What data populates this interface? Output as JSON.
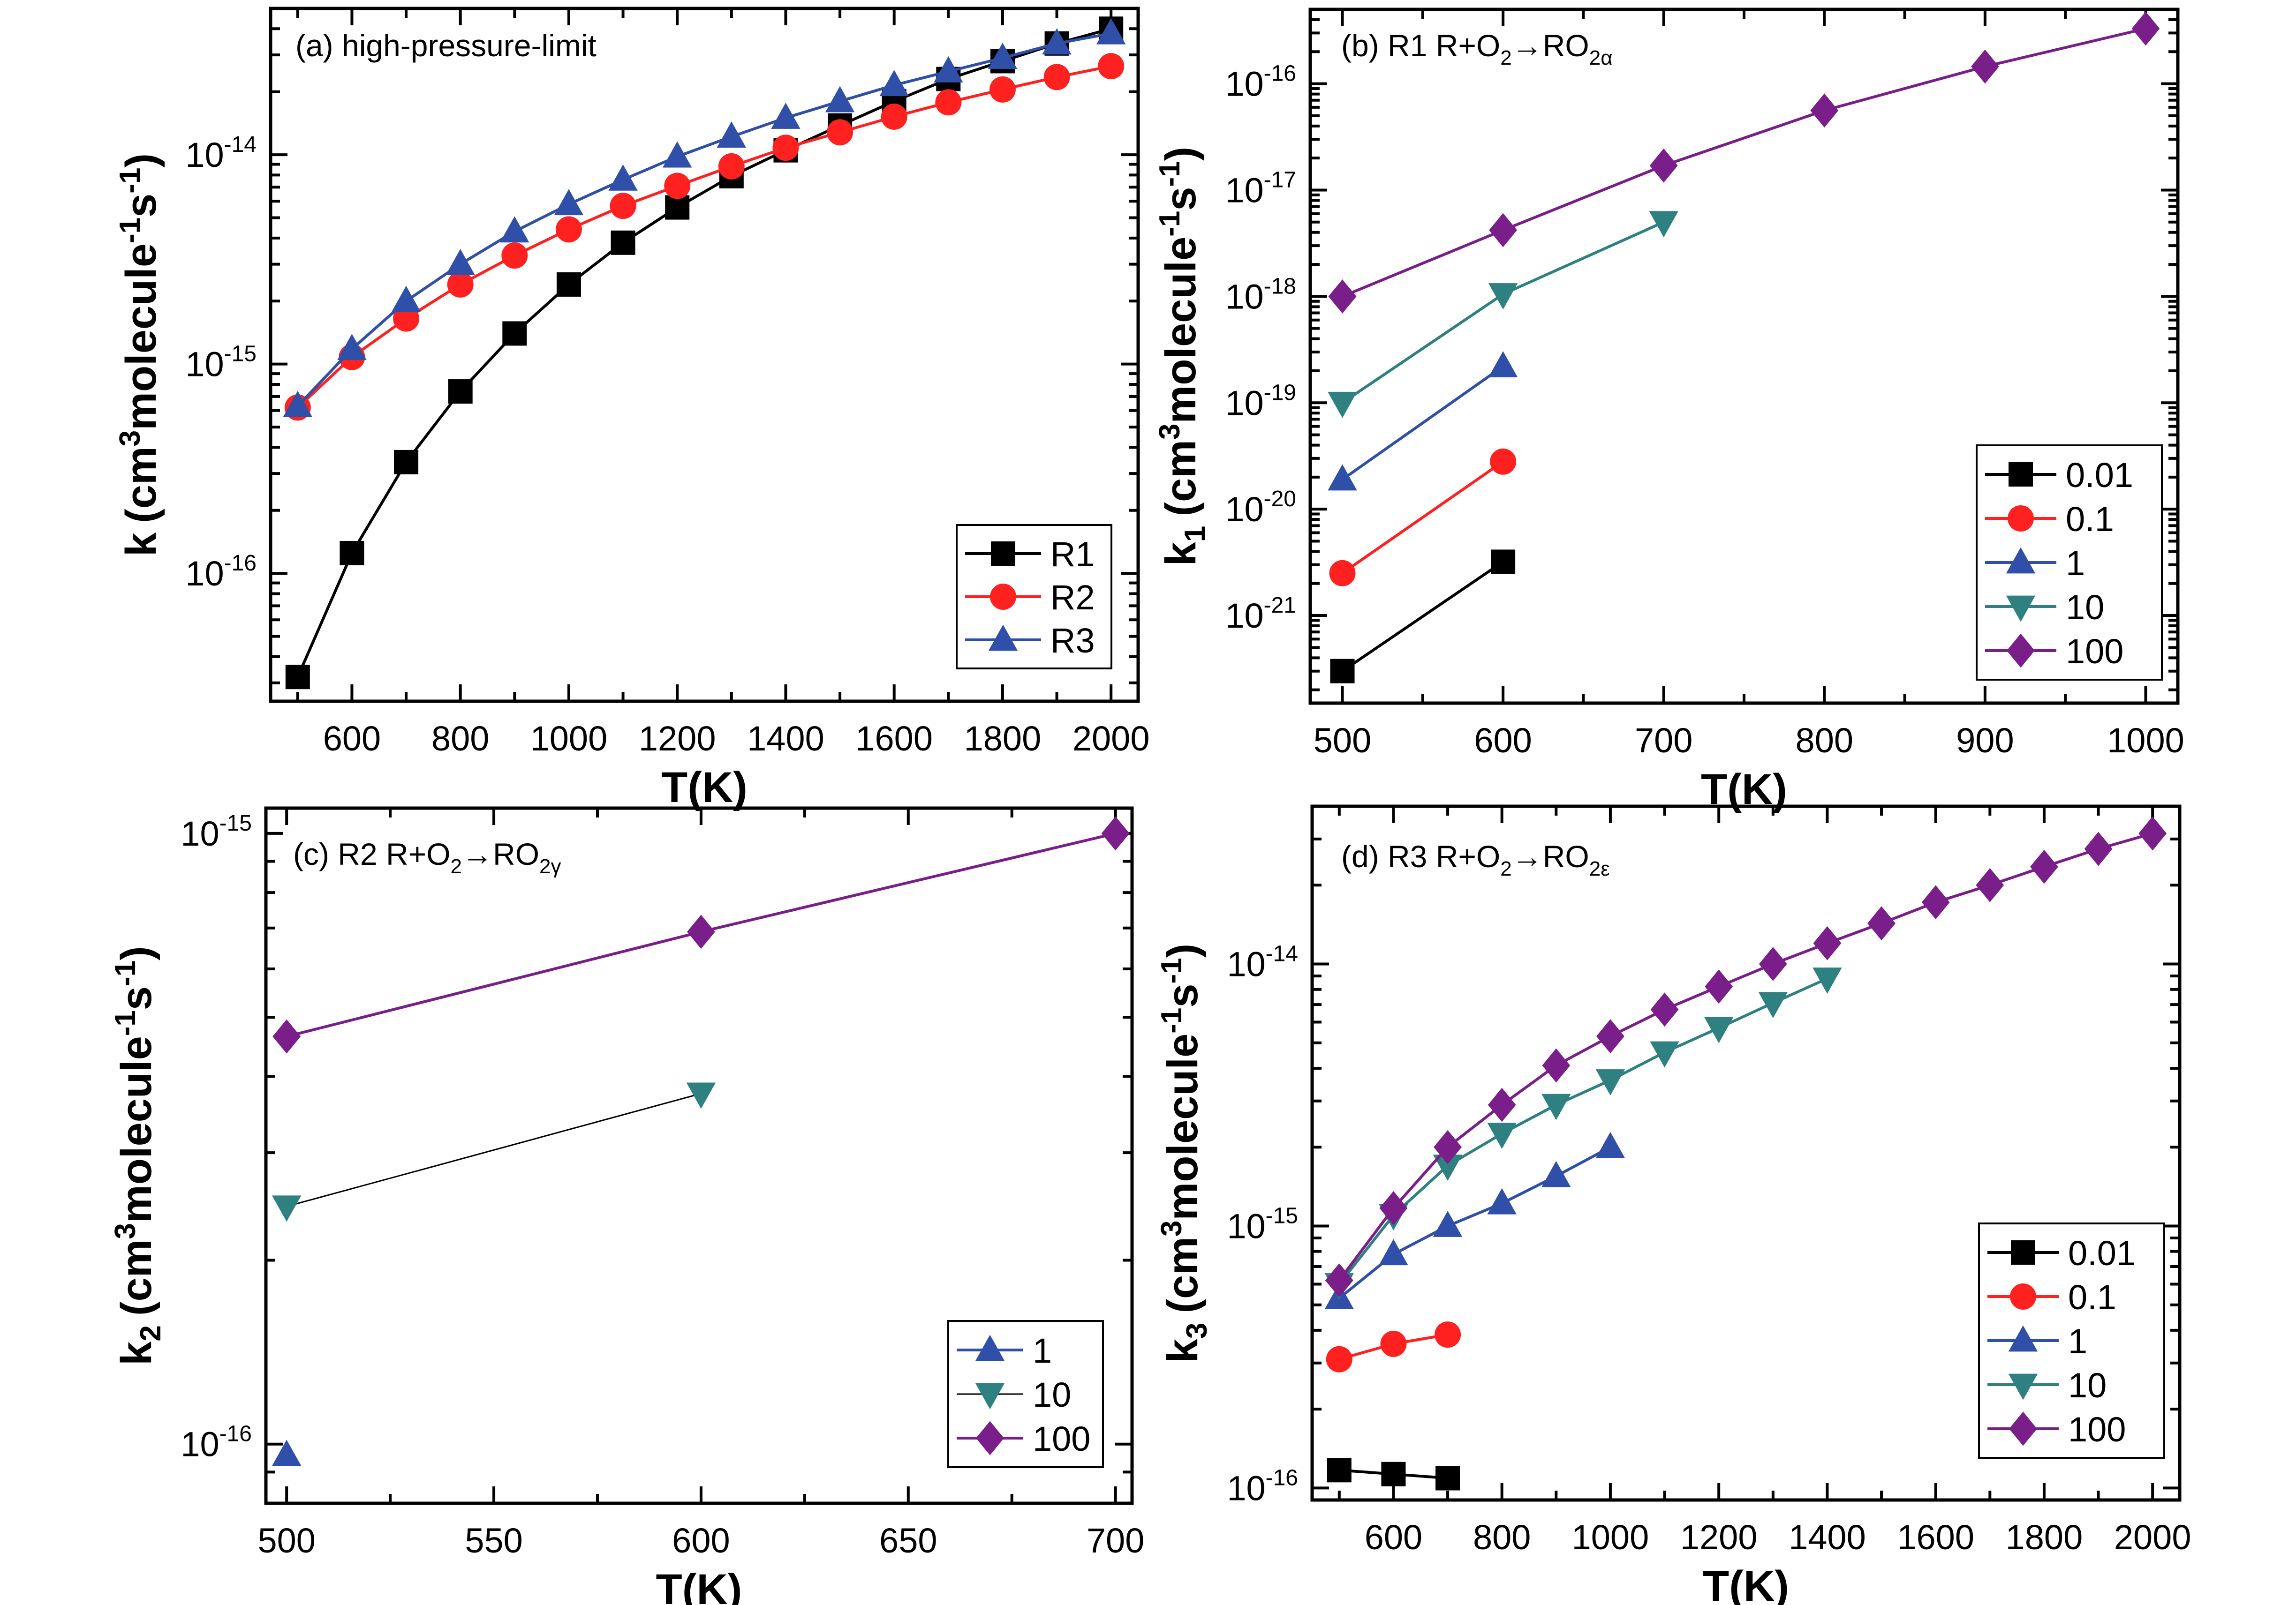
{
  "chart_data": [
    {
      "id": "a",
      "type": "line",
      "title": "(a) high-pressure-limit",
      "title_parts": {
        "main": "(a) high-pressure-limit"
      },
      "xlabel": "T(K)",
      "ylabel": {
        "base": "k",
        "sub": "",
        "unit_prefix": "(cm",
        "unit_sup1": "3",
        "unit_mid": "molecule",
        "unit_sup2": "-1",
        "unit_s": "s",
        "unit_sup3": "-1",
        "unit_close": ")"
      },
      "xscale": "linear",
      "yscale": "log",
      "xlim": [
        450,
        2050
      ],
      "ylim": [
        2.45e-17,
        5e-14
      ],
      "xticks": [
        600,
        800,
        1000,
        1200,
        1400,
        1600,
        1800,
        2000
      ],
      "xtick_labels": [
        "600",
        "800",
        "1000",
        "1200",
        "1400",
        "1600",
        "1800",
        "2000"
      ],
      "xminor_step": 100,
      "yticks_exp": [
        -16,
        -15,
        -14
      ],
      "legend_position": "bottom-right",
      "grid": false,
      "series": [
        {
          "name": "R1",
          "color": "#000000",
          "marker": "square",
          "x": [
            500,
            600,
            700,
            800,
            900,
            1000,
            1100,
            1200,
            1300,
            1400,
            1500,
            1600,
            1700,
            1800,
            1900,
            2000
          ],
          "y": [
            3.2e-17,
            1.25e-16,
            3.4e-16,
            7.4e-16,
            1.4e-15,
            2.4e-15,
            3.8e-15,
            5.6e-15,
            7.9e-15,
            1.05e-14,
            1.38e-14,
            1.8e-14,
            2.3e-14,
            2.8e-14,
            3.4e-14,
            4e-14
          ]
        },
        {
          "name": "R2",
          "color": "#ff2020",
          "marker": "circle",
          "x": [
            500,
            600,
            700,
            800,
            900,
            1000,
            1100,
            1200,
            1300,
            1400,
            1500,
            1600,
            1700,
            1800,
            1900,
            2000
          ],
          "y": [
            6.2e-16,
            1.08e-15,
            1.65e-15,
            2.4e-15,
            3.3e-15,
            4.4e-15,
            5.7e-15,
            7.1e-15,
            8.8e-15,
            1.08e-14,
            1.28e-14,
            1.52e-14,
            1.78e-14,
            2.05e-14,
            2.35e-14,
            2.65e-14
          ]
        },
        {
          "name": "R3",
          "color": "#2f4fa8",
          "marker": "triangle-up",
          "x": [
            500,
            600,
            700,
            800,
            900,
            1000,
            1100,
            1200,
            1300,
            1400,
            1500,
            1600,
            1700,
            1800,
            1900,
            2000
          ],
          "y": [
            6.3e-16,
            1.18e-15,
            2e-15,
            3e-15,
            4.3e-15,
            5.8e-15,
            7.6e-15,
            9.8e-15,
            1.22e-14,
            1.5e-14,
            1.8e-14,
            2.15e-14,
            2.5e-14,
            2.9e-14,
            3.4e-14,
            3.8e-14
          ]
        }
      ]
    },
    {
      "id": "b",
      "type": "line",
      "title": "(b) R1 R+O2→RO2α",
      "title_parts": {
        "main": "(b)  R1  R+O",
        "sub1": "2",
        "arrow": "→RO",
        "sub2": "2α"
      },
      "xlabel": "T(K)",
      "ylabel": {
        "base": "k",
        "sub": "1",
        "unit_prefix": "(cm",
        "unit_sup1": "3",
        "unit_mid": "molecule",
        "unit_sup2": "-1",
        "unit_s": "s",
        "unit_sup3": "-1",
        "unit_close": ")"
      },
      "xscale": "linear",
      "yscale": "log",
      "xlim": [
        480,
        1020
      ],
      "ylim": [
        1.5e-22,
        5e-16
      ],
      "xticks": [
        500,
        600,
        700,
        800,
        900,
        1000
      ],
      "xtick_labels": [
        "500",
        "600",
        "700",
        "800",
        "900",
        "1000"
      ],
      "xminor_step": 50,
      "yticks_exp": [
        -21,
        -20,
        -19,
        -18,
        -17,
        -16
      ],
      "legend_position": "bottom-right",
      "grid": false,
      "series": [
        {
          "name": "0.01",
          "color": "#000000",
          "marker": "square",
          "x": [
            500,
            600
          ],
          "y": [
            3e-22,
            3.2e-21
          ]
        },
        {
          "name": "0.1",
          "color": "#ff2020",
          "marker": "circle",
          "x": [
            500,
            600
          ],
          "y": [
            2.5e-21,
            2.8e-20
          ]
        },
        {
          "name": "1",
          "color": "#2f4fa8",
          "marker": "triangle-up",
          "x": [
            500,
            600
          ],
          "y": [
            1.9e-20,
            2.2e-19
          ]
        },
        {
          "name": "10",
          "color": "#2f8080",
          "marker": "triangle-down",
          "x": [
            500,
            600,
            700
          ],
          "y": [
            1e-19,
            1.05e-18,
            5e-18
          ]
        },
        {
          "name": "100",
          "color": "#7a1f8a",
          "marker": "diamond",
          "x": [
            500,
            600,
            700,
            800,
            900,
            1000
          ],
          "y": [
            1e-18,
            4.2e-18,
            1.7e-17,
            5.6e-17,
            1.45e-16,
            3.3e-16
          ]
        }
      ]
    },
    {
      "id": "c",
      "type": "line",
      "title": "(c) R2 R+O2→RO2γ",
      "title_parts": {
        "main": "(c) R2  R+O",
        "sub1": "2",
        "arrow": "→RO",
        "sub2": "2γ"
      },
      "xlabel": "T(K)",
      "ylabel": {
        "base": "k",
        "sub": "2",
        "unit_prefix": "(cm",
        "unit_sup1": "3",
        "unit_mid": "molecule",
        "unit_sup2": "-1",
        "unit_s": "s",
        "unit_sup3": "-1",
        "unit_close": ")"
      },
      "xscale": "linear",
      "yscale": "log",
      "xlim": [
        495,
        704
      ],
      "ylim": [
        8e-17,
        1.1e-15
      ],
      "xticks": [
        500,
        550,
        600,
        650,
        700
      ],
      "xtick_labels": [
        "500",
        "550",
        "600",
        "650",
        "700"
      ],
      "xminor_step": 25,
      "yticks_exp": [
        -16,
        -15
      ],
      "legend_position": "bottom-right",
      "grid": false,
      "series": [
        {
          "name": "1",
          "color": "#2f4fa8",
          "marker": "triangle-up",
          "x": [
            500
          ],
          "y": [
            9.6e-17
          ]
        },
        {
          "name": "10",
          "color": "#000000",
          "marker_color": "#2f8080",
          "marker": "triangle-down",
          "thin": true,
          "x": [
            500,
            600
          ],
          "y": [
            2.45e-16,
            3.75e-16
          ]
        },
        {
          "name": "100",
          "color": "#7a1f8a",
          "marker": "diamond",
          "x": [
            500,
            600,
            700
          ],
          "y": [
            4.65e-16,
            6.9e-16,
            1e-15
          ]
        }
      ]
    },
    {
      "id": "d",
      "type": "line",
      "title": "(d) R3 R+O2→RO2ε",
      "title_parts": {
        "main": "(d) R3  R+O",
        "sub1": "2",
        "arrow": "→RO",
        "sub2": "2ε"
      },
      "xlabel": "T(K)",
      "ylabel": {
        "base": "k",
        "sub": "3",
        "unit_prefix": "(cm",
        "unit_sup1": "3",
        "unit_mid": "molecule",
        "unit_sup2": "-1",
        "unit_s": "s",
        "unit_sup3": "-1",
        "unit_close": ")"
      },
      "xscale": "linear",
      "yscale": "log",
      "xlim": [
        450,
        2050
      ],
      "ylim": [
        9e-17,
        4e-14
      ],
      "xticks": [
        600,
        800,
        1000,
        1200,
        1400,
        1600,
        1800,
        2000
      ],
      "xtick_labels": [
        "600",
        "800",
        "1000",
        "1200",
        "1400",
        "1600",
        "1800",
        "2000"
      ],
      "xminor_step": 100,
      "yticks_exp": [
        -16,
        -15,
        -14
      ],
      "legend_position": "bottom-right",
      "grid": false,
      "series": [
        {
          "name": "0.01",
          "color": "#000000",
          "marker": "square",
          "x": [
            500,
            600,
            700
          ],
          "y": [
            1.17e-16,
            1.13e-16,
            1.09e-16
          ]
        },
        {
          "name": "0.1",
          "color": "#ff2020",
          "marker": "circle",
          "x": [
            500,
            600,
            700
          ],
          "y": [
            3.1e-16,
            3.55e-16,
            3.85e-16
          ]
        },
        {
          "name": "1",
          "color": "#2f4fa8",
          "marker": "triangle-up",
          "x": [
            500,
            600,
            700,
            800,
            900,
            1000
          ],
          "y": [
            5.3e-16,
            7.8e-16,
            1e-15,
            1.22e-15,
            1.55e-15,
            2e-15
          ]
        },
        {
          "name": "10",
          "color": "#2f8080",
          "marker": "triangle-down",
          "x": [
            500,
            600,
            700,
            800,
            900,
            1000,
            1100,
            1200,
            1300,
            1400
          ],
          "y": [
            6e-16,
            1.1e-15,
            1.7e-15,
            2.25e-15,
            2.9e-15,
            3.6e-15,
            4.6e-15,
            5.7e-15,
            7.1e-15,
            8.8e-15
          ]
        },
        {
          "name": "100",
          "color": "#7a1f8a",
          "marker": "diamond",
          "x": [
            500,
            600,
            700,
            800,
            900,
            1000,
            1100,
            1200,
            1300,
            1400,
            1500,
            1600,
            1700,
            1800,
            1900,
            2000
          ],
          "y": [
            6.2e-16,
            1.17e-15,
            2e-15,
            2.9e-15,
            4.1e-15,
            5.3e-15,
            6.7e-15,
            8.2e-15,
            1e-14,
            1.2e-14,
            1.43e-14,
            1.72e-14,
            2e-14,
            2.35e-14,
            2.75e-14,
            3.15e-14
          ]
        }
      ]
    }
  ]
}
